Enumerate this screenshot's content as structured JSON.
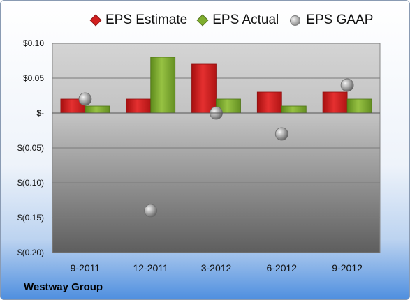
{
  "chart_data": {
    "type": "bar",
    "categories": [
      "9-2011",
      "12-2011",
      "3-2012",
      "6-2012",
      "9-2012"
    ],
    "series": [
      {
        "name": "EPS Estimate",
        "type": "bar",
        "color": "#d21f1f",
        "values": [
          0.02,
          0.02,
          0.07,
          0.03,
          0.03
        ]
      },
      {
        "name": "EPS Actual",
        "type": "bar",
        "color": "#7fae2e",
        "values": [
          0.01,
          0.08,
          0.02,
          0.01,
          0.02
        ]
      },
      {
        "name": "EPS GAAP",
        "type": "scatter",
        "color": "#a6a6a6",
        "values": [
          0.02,
          -0.14,
          0.0,
          -0.03,
          0.04
        ]
      }
    ],
    "ylim": [
      -0.2,
      0.1
    ],
    "yticks": [
      0.1,
      0.05,
      0,
      -0.05,
      -0.1,
      -0.15,
      -0.2
    ],
    "ytick_labels": [
      "$0.10",
      "$0.05",
      "$-",
      "$(0.05)",
      "$(0.10)",
      "$(0.15)",
      "$(0.20)"
    ],
    "grid": true,
    "legend_position": "top"
  },
  "company_name": "Westway Group"
}
